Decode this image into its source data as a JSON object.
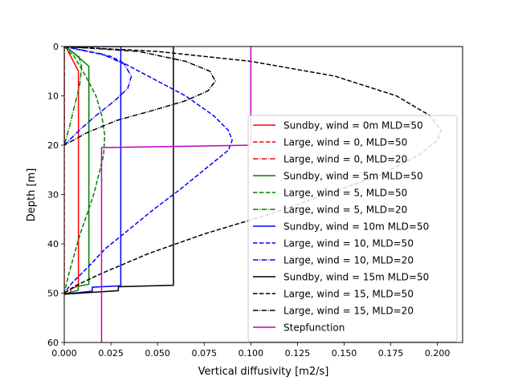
{
  "chart_data": {
    "type": "line",
    "title": "",
    "xlabel": "Vertical diffusivity [m2/s]",
    "ylabel": "Depth [m]",
    "xlim": [
      0,
      0.2135
    ],
    "ylim": [
      60,
      0
    ],
    "xticks": [
      "0.000",
      "0.025",
      "0.050",
      "0.075",
      "0.100",
      "0.125",
      "0.150",
      "0.175",
      "0.200"
    ],
    "yticks": [
      "0",
      "10",
      "20",
      "30",
      "40",
      "50",
      "60"
    ],
    "legend_position": "center-right",
    "series": [
      {
        "name": "Sundby, wind = 0m MLD=50",
        "color": "#ff0000",
        "style": "solid",
        "points": [
          [
            0.0008,
            0
          ],
          [
            0.0076,
            5
          ],
          [
            0.0076,
            48.5
          ],
          [
            0.0035,
            49.2
          ],
          [
            0.0035,
            49.8
          ],
          [
            0.0,
            50.2
          ]
        ]
      },
      {
        "name": "Large, wind = 0, MLD=50",
        "color": "#ff0000",
        "style": "dashed",
        "points": [
          [
            0,
            0
          ],
          [
            0,
            50
          ]
        ]
      },
      {
        "name": "Large, wind = 0, MLD=20",
        "color": "#ff0000",
        "style": "dashdot",
        "points": [
          [
            0,
            0
          ],
          [
            0,
            20
          ]
        ]
      },
      {
        "name": "Sundby, wind = 5m MLD=50",
        "color": "#008000",
        "style": "solid",
        "points": [
          [
            0.001,
            0
          ],
          [
            0.0132,
            4
          ],
          [
            0.0132,
            48.2
          ],
          [
            0.0075,
            48.6
          ],
          [
            0.0075,
            49.4
          ],
          [
            0.0,
            50.2
          ]
        ]
      },
      {
        "name": "Large, wind = 5, MLD=50",
        "color": "#008000",
        "style": "dashed",
        "points": [
          [
            0,
            0
          ],
          [
            0.0053,
            2
          ],
          [
            0.0115,
            6
          ],
          [
            0.017,
            10
          ],
          [
            0.0201,
            14
          ],
          [
            0.0217,
            18
          ],
          [
            0.0211,
            22
          ],
          [
            0.0185,
            26
          ],
          [
            0.0158,
            30
          ],
          [
            0.0122,
            34
          ],
          [
            0.0085,
            38
          ],
          [
            0.0055,
            42
          ],
          [
            0.0025,
            46
          ],
          [
            0,
            50
          ]
        ]
      },
      {
        "name": "Large, wind = 5, MLD=20",
        "color": "#008000",
        "style": "dashdot",
        "points": [
          [
            0,
            0
          ],
          [
            0.0078,
            2
          ],
          [
            0.0093,
            4
          ],
          [
            0.0082,
            8
          ],
          [
            0.0055,
            12
          ],
          [
            0.003,
            16
          ],
          [
            0,
            20
          ]
        ]
      },
      {
        "name": "Sundby, wind = 10m MLD=50",
        "color": "#0000ff",
        "style": "solid",
        "points": [
          [
            0.0015,
            0
          ],
          [
            0.0303,
            0
          ],
          [
            0.0303,
            48.5
          ],
          [
            0.015,
            48.8
          ],
          [
            0.015,
            49.6
          ],
          [
            0.0,
            50.2
          ]
        ]
      },
      {
        "name": "Large, wind = 10, MLD=50",
        "color": "#0000ff",
        "style": "dashed",
        "points": [
          [
            0,
            0
          ],
          [
            0.025,
            2
          ],
          [
            0.045,
            6
          ],
          [
            0.065,
            10
          ],
          [
            0.08,
            14
          ],
          [
            0.088,
            17
          ],
          [
            0.09,
            19
          ],
          [
            0.088,
            21
          ],
          [
            0.075,
            25
          ],
          [
            0.062,
            29
          ],
          [
            0.048,
            33
          ],
          [
            0.035,
            37
          ],
          [
            0.022,
            41
          ],
          [
            0.012,
            45
          ],
          [
            0.004,
            48
          ],
          [
            0,
            50
          ]
        ]
      },
      {
        "name": "Large, wind = 10, MLD=20",
        "color": "#0000ff",
        "style": "dashdot",
        "points": [
          [
            0,
            0
          ],
          [
            0.02,
            1.5
          ],
          [
            0.032,
            3.5
          ],
          [
            0.036,
            6
          ],
          [
            0.034,
            8.5
          ],
          [
            0.027,
            11
          ],
          [
            0.017,
            14
          ],
          [
            0.008,
            17
          ],
          [
            0,
            20
          ]
        ]
      },
      {
        "name": "Sundby, wind = 15m MLD=50",
        "color": "#000000",
        "style": "solid",
        "points": [
          [
            0.002,
            0
          ],
          [
            0.0585,
            0
          ],
          [
            0.0585,
            48.4
          ],
          [
            0.029,
            48.7
          ],
          [
            0.029,
            49.5
          ],
          [
            0.0,
            50.2
          ]
        ]
      },
      {
        "name": "Large, wind = 15, MLD=50",
        "color": "#000000",
        "style": "dashed",
        "points": [
          [
            0,
            0
          ],
          [
            0.05,
            1
          ],
          [
            0.1,
            3
          ],
          [
            0.145,
            6
          ],
          [
            0.178,
            10
          ],
          [
            0.196,
            14
          ],
          [
            0.202,
            17
          ],
          [
            0.2,
            19
          ],
          [
            0.19,
            22
          ],
          [
            0.17,
            26
          ],
          [
            0.14,
            30
          ],
          [
            0.11,
            34
          ],
          [
            0.075,
            38
          ],
          [
            0.045,
            42
          ],
          [
            0.02,
            46
          ],
          [
            0.006,
            48.5
          ],
          [
            0,
            50
          ]
        ]
      },
      {
        "name": "Large, wind = 15, MLD=20",
        "color": "#000000",
        "style": "dashdot",
        "points": [
          [
            0,
            0
          ],
          [
            0.04,
            1
          ],
          [
            0.065,
            3
          ],
          [
            0.078,
            5
          ],
          [
            0.081,
            7
          ],
          [
            0.077,
            9
          ],
          [
            0.065,
            11
          ],
          [
            0.047,
            13
          ],
          [
            0.028,
            15
          ],
          [
            0.012,
            17.5
          ],
          [
            0,
            20
          ]
        ]
      },
      {
        "name": "Stepfunction",
        "color": "#bf00bf",
        "style": "solid",
        "points": [
          [
            0.1,
            0
          ],
          [
            0.1,
            20
          ],
          [
            0.02,
            20.5
          ],
          [
            0.02,
            60
          ]
        ]
      }
    ]
  }
}
